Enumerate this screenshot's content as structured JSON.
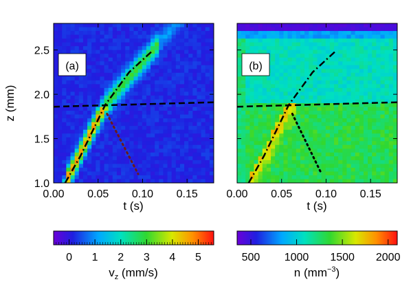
{
  "chart_data": [
    {
      "type": "heatmap",
      "panel_label": "(a)",
      "xlabel": "t (s)",
      "ylabel": "z (mm)",
      "xlim": [
        0.0,
        0.18
      ],
      "ylim": [
        1.0,
        2.8
      ],
      "xticks": [
        "0.00",
        "0.05",
        "0.10",
        "0.15"
      ],
      "yticks": [
        "1.0",
        "1.5",
        "2.0",
        "2.5"
      ],
      "colorbar": {
        "label_main": "v",
        "label_sub": "z",
        "label_unit": "(mm/s)",
        "range": [
          -0.6,
          5.6
        ],
        "ticks": [
          "0",
          "1",
          "2",
          "3",
          "4",
          "5"
        ]
      },
      "overlays": {
        "dashed": {
          "points": [
            [
              0.0,
              1.86
            ],
            [
              0.18,
              1.91
            ]
          ]
        },
        "dashdot": {
          "points": [
            [
              0.013,
              1.0
            ],
            [
              0.03,
              1.3
            ],
            [
              0.058,
              1.88
            ],
            [
              0.085,
              2.25
            ],
            [
              0.11,
              2.48
            ]
          ]
        },
        "dotted": {
          "points": [
            [
              0.06,
              1.78
            ],
            [
              0.095,
              1.1
            ]
          ]
        }
      }
    },
    {
      "type": "heatmap",
      "panel_label": "(b)",
      "xlabel": "t (s)",
      "xlim": [
        0.0,
        0.18
      ],
      "ylim": [
        1.0,
        2.8
      ],
      "xticks": [
        "0.00",
        "0.05",
        "0.10",
        "0.15"
      ],
      "colorbar": {
        "label_main": "n",
        "label_unit": "(mm",
        "label_exp": "−3",
        "label_close": ")",
        "range": [
          350,
          2100
        ],
        "ticks": [
          "500",
          "1000",
          "1500",
          "2000"
        ]
      },
      "overlays": {
        "dashed": {
          "points": [
            [
              0.0,
              1.86
            ],
            [
              0.18,
              1.91
            ]
          ]
        },
        "dashdot": {
          "points": [
            [
              0.013,
              1.0
            ],
            [
              0.03,
              1.3
            ],
            [
              0.058,
              1.88
            ],
            [
              0.085,
              2.25
            ],
            [
              0.11,
              2.48
            ]
          ]
        },
        "dotted": {
          "points": [
            [
              0.062,
              1.78
            ],
            [
              0.095,
              1.1
            ]
          ]
        }
      }
    }
  ]
}
